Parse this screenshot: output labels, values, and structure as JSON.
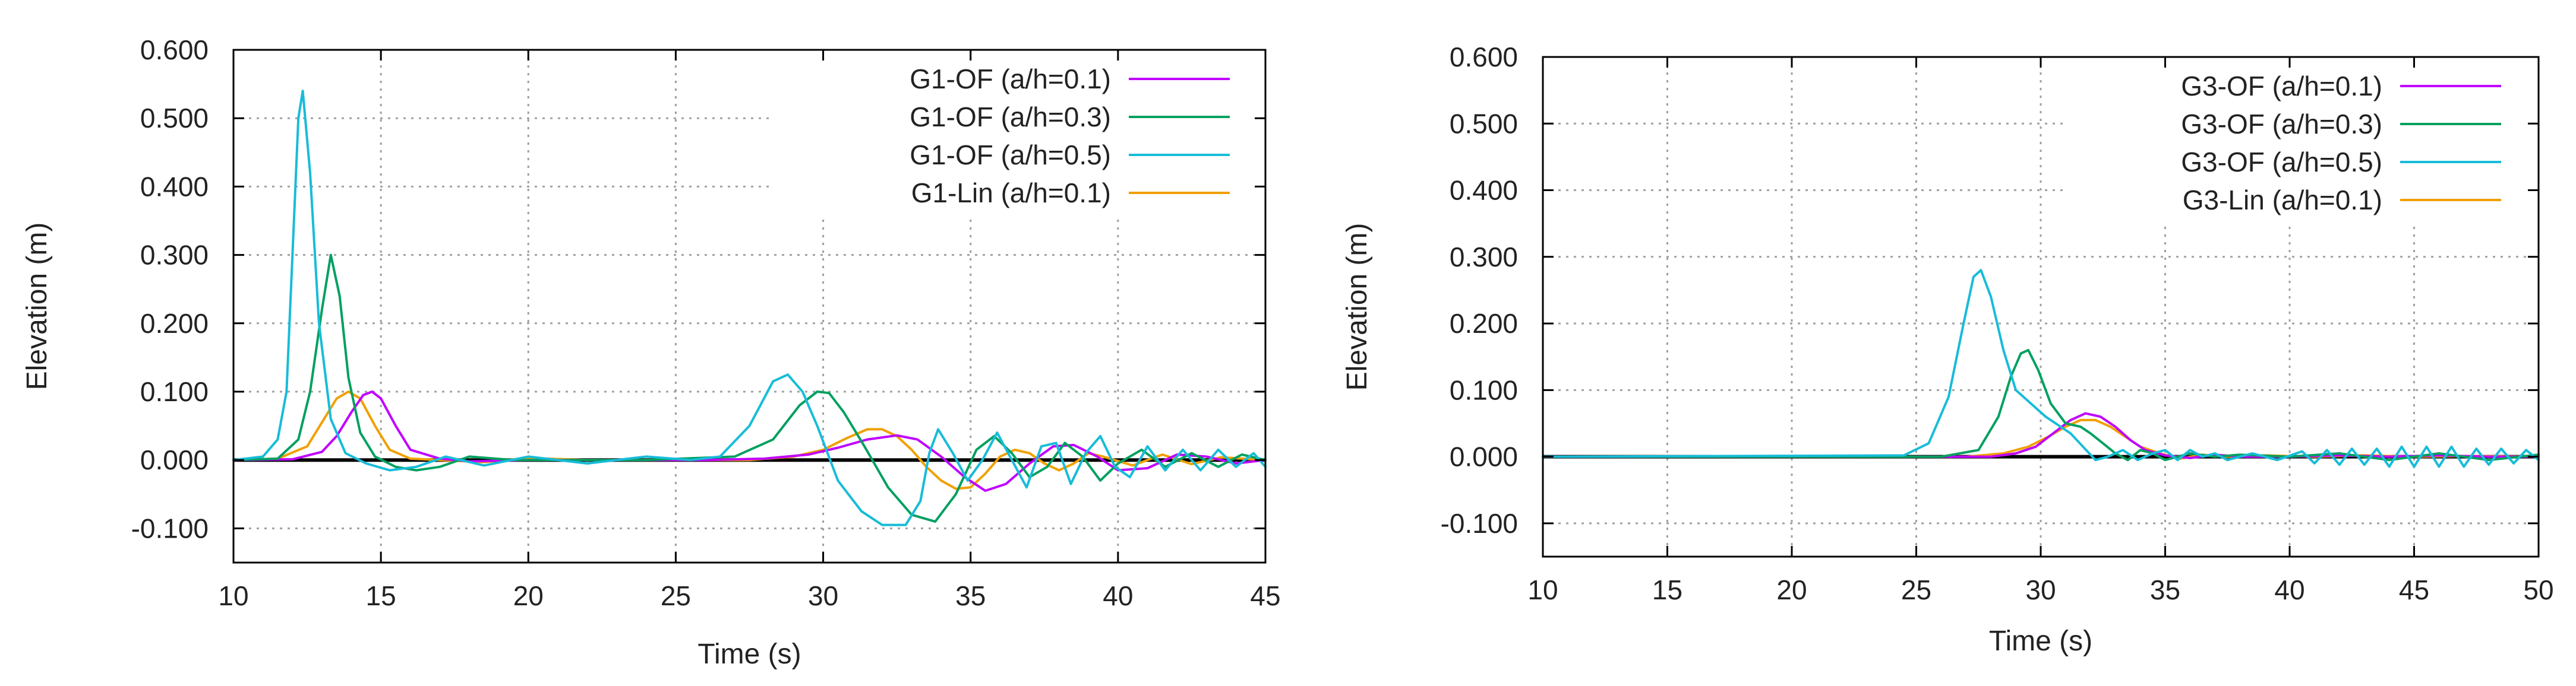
{
  "colors": {
    "background": "#ffffff",
    "axis": "#000000",
    "grid": "#a0a0a0",
    "zero_line": "#000000",
    "series_a01": "#c000ff",
    "series_a03": "#00a060",
    "series_a05": "#17bcd8",
    "series_lin": "#f0a000"
  },
  "chart_data": [
    {
      "type": "line",
      "title": "",
      "xlabel": "Time (s)",
      "ylabel": "Elevation (m)",
      "xlim": [
        10,
        45
      ],
      "ylim": [
        -0.15,
        0.6
      ],
      "xticks": [
        "10",
        "15",
        "20",
        "25",
        "30",
        "35",
        "40",
        "45"
      ],
      "yticks": [
        "0.600",
        "0.500",
        "0.400",
        "0.300",
        "0.200",
        "0.100",
        "0.000",
        "-0.100"
      ],
      "grid": true,
      "legend": "top-right",
      "series": [
        {
          "name": "G1-OF (a/h=0.1)",
          "color": "#c000ff",
          "x": [
            10,
            12,
            13.0,
            13.5,
            14,
            14.4,
            14.7,
            15.0,
            15.5,
            16,
            17,
            18,
            20,
            22,
            26,
            28,
            29.5,
            30.5,
            31.5,
            32.5,
            33.2,
            34,
            34.8,
            35.5,
            36.2,
            37,
            37.8,
            38.5,
            39.3,
            40,
            41,
            42,
            43,
            44,
            45
          ],
          "y": [
            0,
            0.001,
            0.012,
            0.035,
            0.07,
            0.095,
            0.1,
            0.09,
            0.05,
            0.015,
            0.002,
            -0.002,
            0.0,
            0.0,
            0.0,
            0.002,
            0.008,
            0.018,
            0.03,
            0.036,
            0.03,
            0.005,
            -0.025,
            -0.045,
            -0.035,
            -0.005,
            0.02,
            0.022,
            0.005,
            -0.015,
            -0.012,
            0.008,
            0.005,
            -0.005,
            0.0
          ]
        },
        {
          "name": "G1-OF (a/h=0.3)",
          "color": "#00a060",
          "x": [
            10,
            11.5,
            12.2,
            12.6,
            13.0,
            13.3,
            13.6,
            13.9,
            14.3,
            14.8,
            15.5,
            16.2,
            17,
            18,
            19.5,
            21,
            24,
            27,
            28.3,
            29.2,
            29.8,
            30.2,
            30.7,
            31.4,
            32.2,
            33.0,
            33.8,
            34.5,
            35.2,
            35.8,
            36.4,
            37.0,
            37.6,
            38.2,
            38.8,
            39.4,
            40.0,
            40.8,
            41.6,
            42.5,
            43.4,
            44.2,
            45
          ],
          "y": [
            0,
            0.002,
            0.03,
            0.1,
            0.22,
            0.3,
            0.24,
            0.12,
            0.04,
            0.005,
            -0.01,
            -0.015,
            -0.01,
            0.005,
            0.0,
            0.0,
            0.0,
            0.005,
            0.03,
            0.08,
            0.1,
            0.098,
            0.07,
            0.02,
            -0.04,
            -0.08,
            -0.09,
            -0.05,
            0.015,
            0.035,
            0.01,
            -0.025,
            -0.01,
            0.025,
            0.005,
            -0.03,
            -0.005,
            0.015,
            -0.01,
            0.01,
            -0.01,
            0.008,
            0.0
          ]
        },
        {
          "name": "G1-OF (a/h=0.5)",
          "color": "#17bcd8",
          "x": [
            10,
            11.0,
            11.5,
            11.8,
            12.0,
            12.2,
            12.35,
            12.6,
            12.9,
            13.3,
            13.8,
            14.5,
            15.3,
            16.2,
            17.2,
            18.5,
            20,
            22,
            24,
            25.5,
            26.5,
            27.5,
            28.3,
            28.8,
            29.3,
            29.8,
            30.5,
            31.3,
            32.0,
            32.8,
            33.3,
            33.6,
            33.9,
            34.4,
            34.9,
            35.4,
            35.9,
            36.4,
            36.9,
            37.4,
            37.9,
            38.4,
            38.9,
            39.4,
            39.9,
            40.4,
            41.0,
            41.6,
            42.2,
            42.8,
            43.4,
            44.0,
            44.6,
            45
          ],
          "y": [
            0,
            0.005,
            0.03,
            0.1,
            0.3,
            0.5,
            0.54,
            0.42,
            0.2,
            0.06,
            0.01,
            -0.005,
            -0.015,
            -0.01,
            0.005,
            -0.008,
            0.005,
            -0.005,
            0.005,
            0.0,
            0.005,
            0.05,
            0.115,
            0.125,
            0.1,
            0.05,
            -0.03,
            -0.075,
            -0.095,
            -0.095,
            -0.06,
            0.01,
            0.045,
            0.01,
            -0.03,
            0.0,
            0.04,
            0.0,
            -0.04,
            0.02,
            0.025,
            -0.035,
            0.01,
            0.035,
            -0.01,
            -0.025,
            0.02,
            -0.015,
            0.015,
            -0.015,
            0.015,
            -0.01,
            0.01,
            -0.01
          ]
        },
        {
          "name": "G1-Lin (a/h=0.1)",
          "color": "#f0a000",
          "x": [
            10,
            11.5,
            12.5,
            13.0,
            13.5,
            13.9,
            14.3,
            14.8,
            15.3,
            16.0,
            17,
            18.5,
            20,
            22,
            25,
            27.5,
            29.0,
            30.0,
            30.8,
            31.5,
            32.0,
            32.5,
            33.0,
            33.5,
            34.0,
            34.5,
            35.0,
            35.5,
            36.0,
            36.5,
            37.0,
            37.5,
            38.0,
            38.5,
            39.0,
            39.5,
            40.5,
            41.5,
            42.5,
            43.5,
            45
          ],
          "y": [
            0,
            0.002,
            0.02,
            0.055,
            0.09,
            0.1,
            0.09,
            0.05,
            0.015,
            0.002,
            0.0,
            -0.003,
            0.003,
            0.0,
            0.0,
            0.0,
            0.005,
            0.015,
            0.032,
            0.045,
            0.045,
            0.035,
            0.015,
            -0.01,
            -0.03,
            -0.042,
            -0.04,
            -0.02,
            0.005,
            0.015,
            0.01,
            -0.005,
            -0.015,
            -0.005,
            0.01,
            0.005,
            -0.008,
            0.008,
            -0.006,
            0.004,
            0.0
          ]
        }
      ]
    },
    {
      "type": "line",
      "title": "",
      "xlabel": "Time (s)",
      "ylabel": "Elevation (m)",
      "xlim": [
        10,
        50
      ],
      "ylim": [
        -0.15,
        0.6
      ],
      "xticks": [
        "10",
        "15",
        "20",
        "25",
        "30",
        "35",
        "40",
        "45",
        "50"
      ],
      "yticks": [
        "0.600",
        "0.500",
        "0.400",
        "0.300",
        "0.200",
        "0.100",
        "0.000",
        "-0.100"
      ],
      "grid": true,
      "legend": "top-right",
      "series": [
        {
          "name": "G3-OF (a/h=0.1)",
          "color": "#c000ff",
          "x": [
            10,
            28,
            29.0,
            29.8,
            30.5,
            31.2,
            31.8,
            32.4,
            33.0,
            33.6,
            34.2,
            35.0,
            36,
            37,
            38,
            40,
            42,
            44,
            46,
            48,
            50
          ],
          "y": [
            0,
            0.0,
            0.005,
            0.015,
            0.035,
            0.055,
            0.065,
            0.06,
            0.045,
            0.025,
            0.01,
            0.002,
            -0.002,
            0.003,
            0.0,
            0.0,
            0.002,
            0.0,
            0.002,
            0.0,
            0.0
          ]
        },
        {
          "name": "G3-OF (a/h=0.3)",
          "color": "#00a060",
          "x": [
            10,
            26,
            27.5,
            28.3,
            28.8,
            29.2,
            29.5,
            29.9,
            30.4,
            31.0,
            31.6,
            32.0,
            32.5,
            33.0,
            33.5,
            34.0,
            34.5,
            35.0,
            36,
            37,
            38,
            40,
            42,
            44,
            46,
            48,
            50
          ],
          "y": [
            0,
            0.0,
            0.01,
            0.06,
            0.12,
            0.155,
            0.16,
            0.13,
            0.08,
            0.05,
            0.045,
            0.035,
            0.02,
            0.005,
            -0.005,
            0.01,
            0.005,
            -0.005,
            0.005,
            0.0,
            0.003,
            0.0,
            0.005,
            -0.005,
            0.005,
            -0.005,
            0.003
          ]
        },
        {
          "name": "G3-OF (a/h=0.5)",
          "color": "#17bcd8",
          "x": [
            10,
            24.5,
            25.5,
            26.3,
            26.9,
            27.3,
            27.6,
            28.0,
            28.5,
            29.0,
            29.6,
            30.2,
            30.8,
            31.2,
            31.7,
            32.2,
            32.7,
            33.3,
            33.9,
            34.5,
            35.0,
            35.5,
            36.0,
            36.5,
            37.0,
            37.5,
            38.5,
            39.5,
            40.5,
            41.0,
            41.5,
            42.0,
            42.5,
            43.0,
            43.5,
            44.0,
            44.5,
            45.0,
            45.5,
            46.0,
            46.5,
            47.0,
            47.5,
            48.0,
            48.5,
            49.0,
            49.5,
            50
          ],
          "y": [
            0,
            0.002,
            0.02,
            0.09,
            0.2,
            0.27,
            0.28,
            0.24,
            0.16,
            0.1,
            0.08,
            0.06,
            0.045,
            0.035,
            0.015,
            -0.005,
            0.0,
            0.01,
            -0.005,
            0.005,
            0.01,
            -0.005,
            0.01,
            0.0,
            0.005,
            -0.005,
            0.005,
            -0.005,
            0.008,
            -0.01,
            0.01,
            -0.012,
            0.012,
            -0.012,
            0.012,
            -0.015,
            0.015,
            -0.015,
            0.015,
            -0.015,
            0.015,
            -0.015,
            0.012,
            -0.012,
            0.012,
            -0.01,
            0.01,
            -0.005
          ]
        },
        {
          "name": "G3-Lin (a/h=0.1)",
          "color": "#f0a000",
          "x": [
            10,
            27,
            28.5,
            29.5,
            30.3,
            31.0,
            31.6,
            32.2,
            32.8,
            33.4,
            34.0,
            34.8,
            35.6,
            36.5,
            37.5,
            39,
            41,
            43,
            45,
            47,
            50
          ],
          "y": [
            0,
            0.0,
            0.005,
            0.015,
            0.03,
            0.045,
            0.055,
            0.055,
            0.045,
            0.03,
            0.015,
            0.005,
            -0.003,
            0.003,
            0.0,
            0.002,
            0.0,
            0.002,
            0.0,
            0.001,
            0.0
          ]
        }
      ]
    }
  ]
}
